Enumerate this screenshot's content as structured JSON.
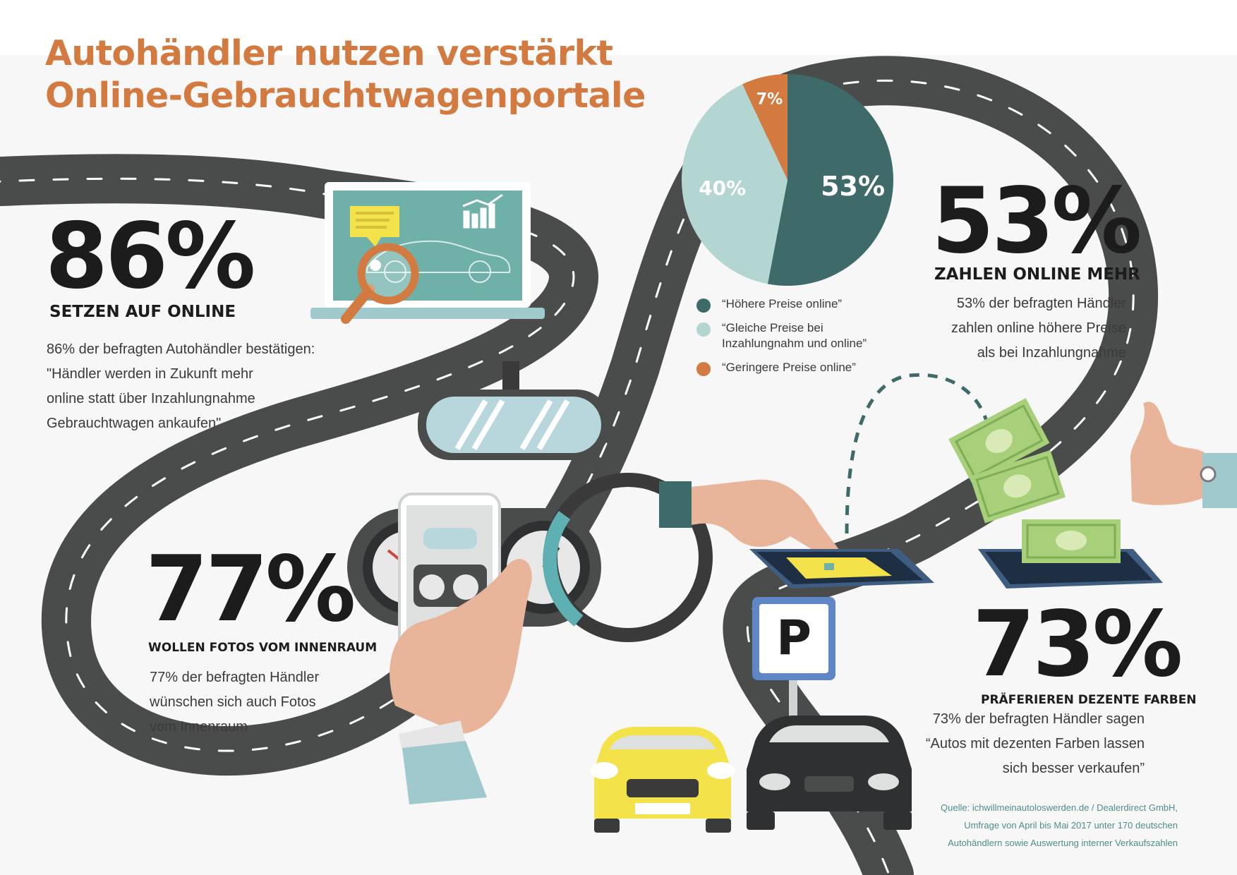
{
  "title": {
    "line1": "Autohändler nutzen verstärkt",
    "line2": "Online-Gebrauchtwagenportale"
  },
  "colors": {
    "title": "#d27a3f",
    "road": "#4a4c4b",
    "dark_teal": "#3e6b69",
    "light_teal": "#b3d6d3",
    "orange": "#d27a3f",
    "background": "#f7f7f7"
  },
  "stat_86": {
    "value": "86%",
    "headline": "SETZEN AUF ONLINE",
    "body": [
      "86% der befragten Autohändler bestätigen:",
      "\"Händler werden in Zukunft mehr",
      "online statt über Inzahlungnahme",
      "Gebrauchtwagen ankaufen\""
    ]
  },
  "stat_53": {
    "value": "53%",
    "headline": "ZAHLEN ONLINE MEHR",
    "body": [
      "53% der befragten Händler",
      "zahlen online höhere Preise",
      "als bei Inzahlungnahme"
    ]
  },
  "stat_77": {
    "value": "77%",
    "headline": "WOLLEN FOTOS VOM INNENRAUM",
    "body": [
      "77% der befragten Händler",
      "wünschen sich auch Fotos",
      "vom Innenraum"
    ]
  },
  "stat_73": {
    "value": "73%",
    "headline": "PRÄFERIEREN DEZENTE FARBEN",
    "body": [
      "73% der befragten Händler sagen",
      "“Autos mit dezenten Farben lassen",
      "sich besser verkaufen”"
    ]
  },
  "pie": {
    "slices": [
      {
        "label": "53%",
        "value": 53,
        "color": "#3e6b69",
        "legend": [
          "“Höhere Preise online”"
        ]
      },
      {
        "label": "40%",
        "value": 40,
        "color": "#b3d6d3",
        "legend": [
          "“Gleiche Preise bei",
          "Inzahlungnahm und online”"
        ]
      },
      {
        "label": "7%",
        "value": 7,
        "color": "#d27a3f",
        "legend": [
          "“Geringere Preise online”"
        ]
      }
    ]
  },
  "parking_sign": "P",
  "source": [
    "Quelle: ichwillmeinautoloswerden.de / Dealerdirect GmbH,",
    "Umfrage von April bis Mai 2017 unter 170 deutschen",
    "Autohändlern sowie Auswertung interner Verkaufszahlen"
  ],
  "icons": [
    "laptop-icon",
    "magnifier-icon",
    "car-silhouette-icon",
    "rearview-mirror-icon",
    "steering-wheel-icon",
    "dashboard-icon",
    "smartphone-icon",
    "hand-icon",
    "tablet-icon",
    "banknote-icon",
    "thumbs-up-icon",
    "parking-sign-icon",
    "yellow-car-icon",
    "black-car-icon"
  ]
}
